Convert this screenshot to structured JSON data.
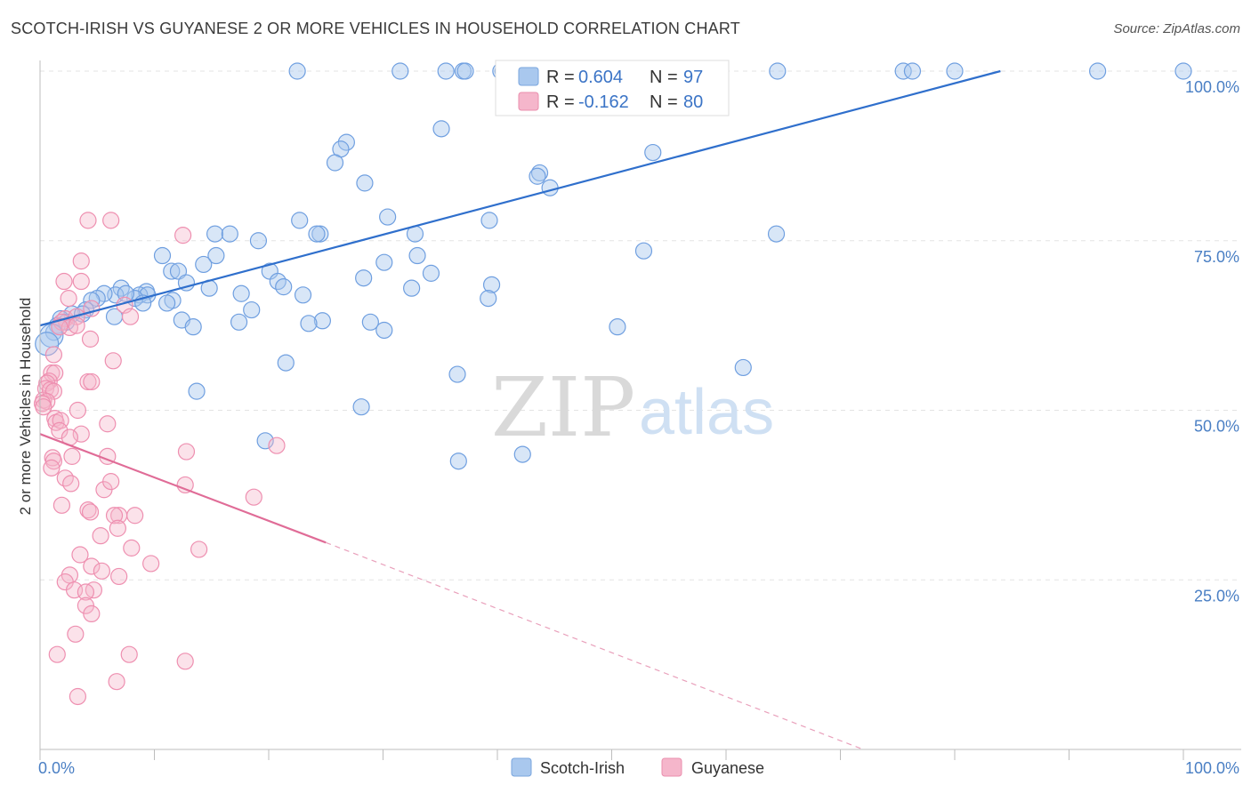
{
  "header": {
    "title": "SCOTCH-IRISH VS GUYANESE 2 OR MORE VEHICLES IN HOUSEHOLD CORRELATION CHART",
    "source": "Source: ZipAtlas.com"
  },
  "watermark": {
    "zip": "ZIP",
    "atlas": "atlas"
  },
  "legend": {
    "rows": [
      {
        "r_label": "R =",
        "r_value": "0.604",
        "n_label": "N =",
        "n_value": "97",
        "color": "#a9c8ee"
      },
      {
        "r_label": "R =",
        "r_value": "-0.162",
        "n_label": "N =",
        "n_value": "80",
        "color": "#f5b6cb"
      }
    ]
  },
  "chart_data": {
    "type": "scatter",
    "title": "SCOTCH-IRISH VS GUYANESE 2 OR MORE VEHICLES IN HOUSEHOLD CORRELATION CHART",
    "xlabel": "",
    "ylabel": "2 or more Vehicles in Household",
    "xlim": [
      0,
      100
    ],
    "ylim": [
      0,
      100
    ],
    "x_tick_labels": [
      "0.0%",
      "100.0%"
    ],
    "y_tick_labels": [
      "100.0%",
      "75.0%",
      "50.0%",
      "25.0%"
    ],
    "y_ticks": [
      100,
      75,
      50,
      25
    ],
    "grid": true,
    "legend_position": "bottom",
    "series": [
      {
        "name": "Scotch-Irish",
        "color": "#6f9fe0",
        "trend": {
          "x0": 0,
          "y0": 62.5,
          "x1": 84,
          "y1": 100
        },
        "points": [
          [
            22.5,
            100
          ],
          [
            31.5,
            100
          ],
          [
            35.5,
            100
          ],
          [
            37,
            100
          ],
          [
            37.2,
            100
          ],
          [
            40.3,
            100
          ],
          [
            40.5,
            100
          ],
          [
            42,
            100
          ],
          [
            52.3,
            100
          ],
          [
            57,
            100
          ],
          [
            64.5,
            100
          ],
          [
            75.5,
            100
          ],
          [
            76.3,
            100
          ],
          [
            80,
            100
          ],
          [
            92.5,
            100
          ],
          [
            100,
            100
          ],
          [
            35.1,
            91.5
          ],
          [
            26.8,
            89.5
          ],
          [
            26.3,
            88.5
          ],
          [
            25.8,
            86.5
          ],
          [
            53.6,
            88
          ],
          [
            43.7,
            85
          ],
          [
            43.5,
            84.5
          ],
          [
            44.6,
            82.8
          ],
          [
            28.4,
            83.5
          ],
          [
            30.4,
            78.5
          ],
          [
            22.7,
            78
          ],
          [
            39.3,
            78
          ],
          [
            24.5,
            76
          ],
          [
            24.2,
            76
          ],
          [
            15.3,
            76
          ],
          [
            16.6,
            76
          ],
          [
            32.8,
            76
          ],
          [
            64.4,
            76
          ],
          [
            19.1,
            75
          ],
          [
            52.8,
            73.5
          ],
          [
            10.7,
            72.8
          ],
          [
            15.4,
            72.8
          ],
          [
            14.3,
            71.5
          ],
          [
            33,
            72.8
          ],
          [
            30.1,
            71.8
          ],
          [
            11.5,
            70.5
          ],
          [
            12.1,
            70.5
          ],
          [
            20.1,
            70.5
          ],
          [
            34.2,
            70.2
          ],
          [
            20.8,
            69
          ],
          [
            28.3,
            69.5
          ],
          [
            12.8,
            68.8
          ],
          [
            7.1,
            68
          ],
          [
            14.8,
            68
          ],
          [
            21.3,
            68.2
          ],
          [
            39.5,
            68.5
          ],
          [
            9.3,
            67.5
          ],
          [
            6.6,
            67
          ],
          [
            5.6,
            67.2
          ],
          [
            17.6,
            67.2
          ],
          [
            32.5,
            68
          ],
          [
            8.7,
            67
          ],
          [
            9.4,
            67
          ],
          [
            8.3,
            66.5
          ],
          [
            11.6,
            66.2
          ],
          [
            39.2,
            66.5
          ],
          [
            11.1,
            65.8
          ],
          [
            5.0,
            66.5
          ],
          [
            4.5,
            66.2
          ],
          [
            4.0,
            64.8
          ],
          [
            6.5,
            63.8
          ],
          [
            2.8,
            64.2
          ],
          [
            3.7,
            64.2
          ],
          [
            1.8,
            63.5
          ],
          [
            2.3,
            63
          ],
          [
            1.5,
            62.5
          ],
          [
            12.4,
            63.3
          ],
          [
            17.4,
            63
          ],
          [
            24.7,
            63.2
          ],
          [
            28.9,
            63
          ],
          [
            13.4,
            62.3
          ],
          [
            23.5,
            62.8
          ],
          [
            30.1,
            61.8
          ],
          [
            50.5,
            62.3
          ],
          [
            1.2,
            61.5
          ],
          [
            1.0,
            61
          ],
          [
            0.6,
            59.8
          ],
          [
            21.5,
            57
          ],
          [
            36.5,
            55.3
          ],
          [
            61.5,
            56.3
          ],
          [
            13.7,
            52.8
          ],
          [
            28.1,
            50.5
          ],
          [
            19.7,
            45.5
          ],
          [
            36.6,
            42.5
          ],
          [
            42.2,
            43.5
          ],
          [
            9,
            65.8
          ],
          [
            18.5,
            64.8
          ],
          [
            7.5,
            67.2
          ],
          [
            23,
            67
          ]
        ]
      },
      {
        "name": "Guyanese",
        "color": "#ee8fb0",
        "trend": {
          "x0": 0,
          "y0": 46.5,
          "x1": 25,
          "y1": 30.5,
          "dash_to_x": 72,
          "dash_to_y": 0
        },
        "points": [
          [
            4.2,
            78
          ],
          [
            6.2,
            78
          ],
          [
            12.5,
            75.8
          ],
          [
            3.6,
            72
          ],
          [
            2.1,
            69
          ],
          [
            3.6,
            69
          ],
          [
            2.5,
            66.5
          ],
          [
            7.4,
            65.5
          ],
          [
            4.5,
            65
          ],
          [
            7.9,
            63.8
          ],
          [
            2.2,
            63.5
          ],
          [
            3.2,
            63.8
          ],
          [
            1.9,
            63
          ],
          [
            2.6,
            62.2
          ],
          [
            1.7,
            62.3
          ],
          [
            3.2,
            62.5
          ],
          [
            4.4,
            60.5
          ],
          [
            1.2,
            58.2
          ],
          [
            6.4,
            57.3
          ],
          [
            1.0,
            55.5
          ],
          [
            1.3,
            55.5
          ],
          [
            0.8,
            54.3
          ],
          [
            0.6,
            54
          ],
          [
            4.2,
            54.2
          ],
          [
            4.5,
            54.2
          ],
          [
            0.5,
            53.2
          ],
          [
            0.9,
            53
          ],
          [
            1.2,
            52.8
          ],
          [
            0.3,
            51.5
          ],
          [
            0.6,
            51.3
          ],
          [
            0.2,
            51
          ],
          [
            0.3,
            50.5
          ],
          [
            3.3,
            50
          ],
          [
            1.3,
            48.8
          ],
          [
            1.4,
            48.2
          ],
          [
            1.8,
            48.5
          ],
          [
            5.9,
            48
          ],
          [
            1.7,
            47
          ],
          [
            3.6,
            46.5
          ],
          [
            2.6,
            46
          ],
          [
            12.8,
            43.9
          ],
          [
            20.7,
            44.8
          ],
          [
            2.8,
            43.2
          ],
          [
            1.1,
            43
          ],
          [
            1.2,
            42.5
          ],
          [
            5.9,
            43.2
          ],
          [
            1.0,
            41.5
          ],
          [
            2.2,
            40
          ],
          [
            2.7,
            39.2
          ],
          [
            12.7,
            39
          ],
          [
            5.6,
            38.3
          ],
          [
            18.7,
            37.2
          ],
          [
            6.2,
            39.5
          ],
          [
            1.9,
            36
          ],
          [
            4.2,
            35.3
          ],
          [
            4.4,
            35
          ],
          [
            6.9,
            34.5
          ],
          [
            6.5,
            34.5
          ],
          [
            8.3,
            34.5
          ],
          [
            6.8,
            32.6
          ],
          [
            5.3,
            31.5
          ],
          [
            8.0,
            29.7
          ],
          [
            13.9,
            29.5
          ],
          [
            3.5,
            28.7
          ],
          [
            9.7,
            27.4
          ],
          [
            4.5,
            27
          ],
          [
            5.4,
            26.3
          ],
          [
            2.6,
            25.7
          ],
          [
            6.9,
            25.5
          ],
          [
            2.2,
            24.7
          ],
          [
            3.0,
            23.5
          ],
          [
            4.7,
            23.5
          ],
          [
            4.0,
            23.2
          ],
          [
            4.0,
            21.2
          ],
          [
            4.5,
            20
          ],
          [
            3.1,
            17
          ],
          [
            1.5,
            14
          ],
          [
            7.8,
            14
          ],
          [
            12.7,
            13
          ],
          [
            6.7,
            10
          ],
          [
            3.3,
            7.8
          ]
        ]
      }
    ]
  },
  "bottom_legend": {
    "items": [
      {
        "label": "Scotch-Irish",
        "color": "#a9c8ee"
      },
      {
        "label": "Guyanese",
        "color": "#f5b6cb"
      }
    ]
  }
}
